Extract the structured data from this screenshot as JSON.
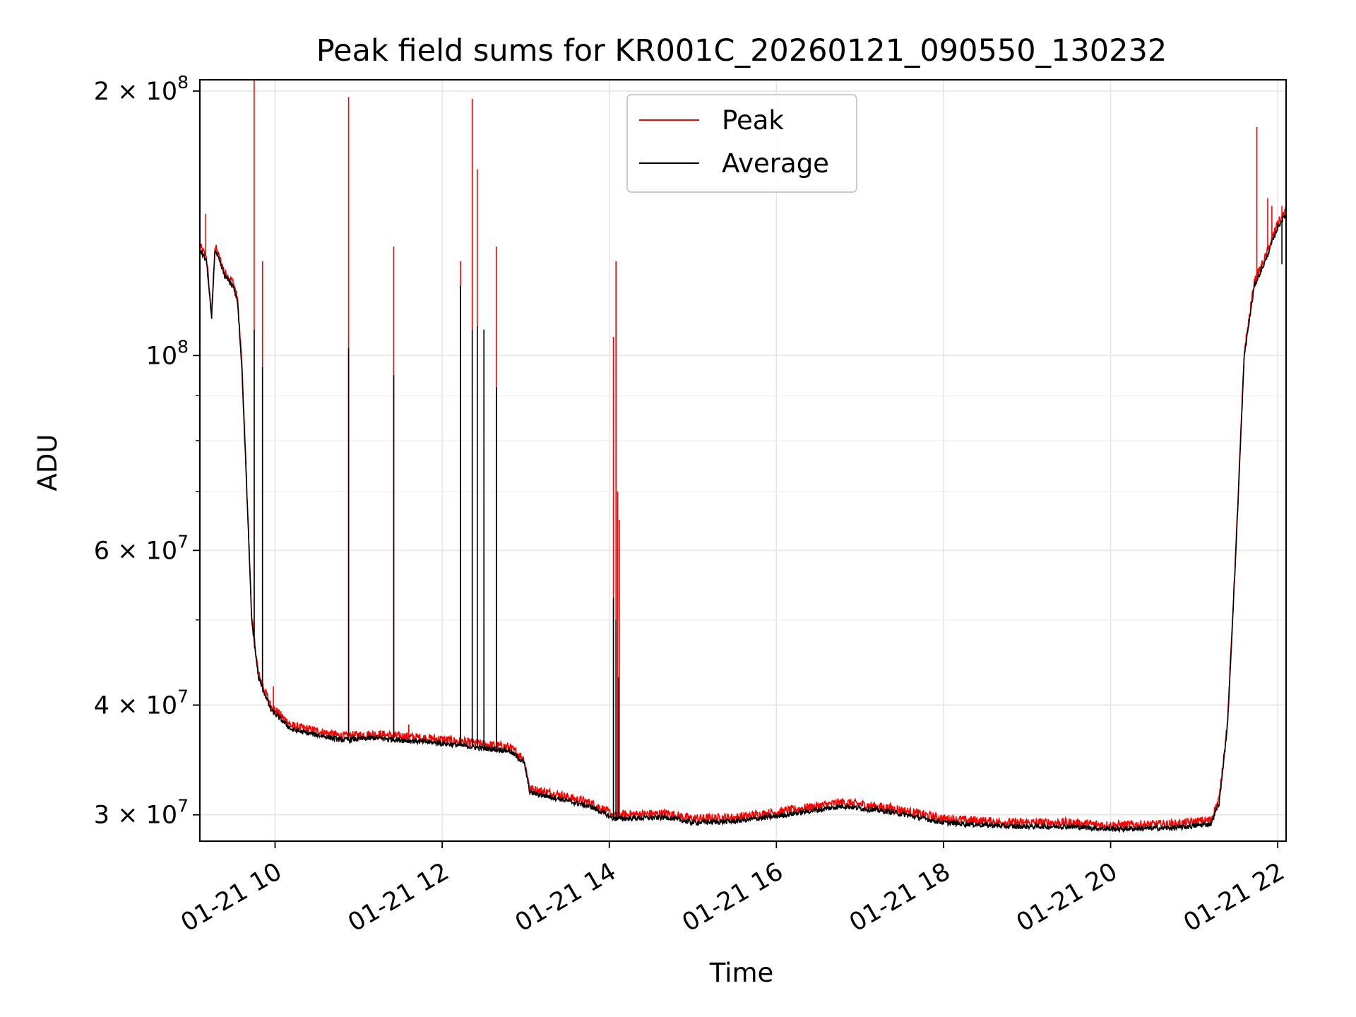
{
  "chart_data": {
    "type": "line",
    "title": "Peak field sums for KR001C_20260121_090550_130232",
    "xlabel": "Time",
    "ylabel": "ADU",
    "yscale": "log",
    "x_unit": "hours (day 2026-01-21)",
    "xlim": [
      9.1,
      22.1
    ],
    "ylim": [
      28000000,
      206000000
    ],
    "grid": true,
    "legend_position": "top-center",
    "x_ticks": [
      {
        "value": 10,
        "label": "01-21 10"
      },
      {
        "value": 12,
        "label": "01-21 12"
      },
      {
        "value": 14,
        "label": "01-21 14"
      },
      {
        "value": 16,
        "label": "01-21 16"
      },
      {
        "value": 18,
        "label": "01-21 18"
      },
      {
        "value": 20,
        "label": "01-21 20"
      },
      {
        "value": 22,
        "label": "01-21 22"
      }
    ],
    "y_ticks_major": [
      {
        "value": 30000000,
        "mantissa": "3",
        "exponent": "7"
      },
      {
        "value": 40000000,
        "mantissa": "4",
        "exponent": "7"
      },
      {
        "value": 60000000,
        "mantissa": "6",
        "exponent": "7"
      },
      {
        "value": 100000000,
        "mantissa": "",
        "exponent": "8"
      },
      {
        "value": 200000000,
        "mantissa": "2",
        "exponent": "8"
      }
    ],
    "y_ticks_minor": [
      50000000,
      70000000,
      80000000,
      90000000
    ],
    "series": [
      {
        "name": "Average",
        "color": "#000000",
        "noise_fraction": 0.007,
        "baseline": [
          [
            9.1,
            132000000
          ],
          [
            9.18,
            128000000
          ],
          [
            9.24,
            110000000
          ],
          [
            9.28,
            132000000
          ],
          [
            9.4,
            123000000
          ],
          [
            9.5,
            120000000
          ],
          [
            9.55,
            115000000
          ],
          [
            9.6,
            98000000
          ],
          [
            9.65,
            75000000
          ],
          [
            9.72,
            50000000
          ],
          [
            9.8,
            43000000
          ],
          [
            9.95,
            39500000
          ],
          [
            10.2,
            37500000
          ],
          [
            10.8,
            36500000
          ],
          [
            11.2,
            36700000
          ],
          [
            11.5,
            36500000
          ],
          [
            12.0,
            36200000
          ],
          [
            12.4,
            35800000
          ],
          [
            12.8,
            35500000
          ],
          [
            12.98,
            34400000
          ],
          [
            13.05,
            31800000
          ],
          [
            13.4,
            31300000
          ],
          [
            13.8,
            30600000
          ],
          [
            14.05,
            29700000
          ],
          [
            14.7,
            29800000
          ],
          [
            15.0,
            29400000
          ],
          [
            15.5,
            29500000
          ],
          [
            16.0,
            29900000
          ],
          [
            16.8,
            30700000
          ],
          [
            17.4,
            30200000
          ],
          [
            18.0,
            29400000
          ],
          [
            18.8,
            29100000
          ],
          [
            19.5,
            29100000
          ],
          [
            20.0,
            28900000
          ],
          [
            20.8,
            29000000
          ],
          [
            21.2,
            29300000
          ],
          [
            21.3,
            31000000
          ],
          [
            21.4,
            38000000
          ],
          [
            21.5,
            60000000
          ],
          [
            21.6,
            100000000
          ],
          [
            21.72,
            120000000
          ],
          [
            21.85,
            128000000
          ],
          [
            22.0,
            140000000
          ],
          [
            22.1,
            145000000
          ]
        ],
        "events": [
          [
            9.75,
            107000000
          ],
          [
            9.85,
            97000000
          ],
          [
            10.88,
            102000000
          ],
          [
            11.42,
            95000000
          ],
          [
            12.22,
            120000000
          ],
          [
            12.36,
            107000000
          ],
          [
            12.42,
            108000000
          ],
          [
            12.5,
            107000000
          ],
          [
            12.65,
            92000000
          ],
          [
            14.05,
            53000000
          ],
          [
            14.08,
            50000000
          ],
          [
            14.11,
            43000000
          ],
          [
            22.05,
            127000000
          ]
        ]
      },
      {
        "name": "Peak",
        "color": "#ff0000",
        "noise_fraction": 0.012,
        "offset_fraction": 0.01,
        "events": [
          [
            9.17,
            145000000
          ],
          [
            9.75,
            206000000
          ],
          [
            9.85,
            128000000
          ],
          [
            9.98,
            42000000
          ],
          [
            10.88,
            197000000
          ],
          [
            11.42,
            133000000
          ],
          [
            11.6,
            38000000
          ],
          [
            12.22,
            128000000
          ],
          [
            12.36,
            196000000
          ],
          [
            12.42,
            163000000
          ],
          [
            12.65,
            133000000
          ],
          [
            14.05,
            105000000
          ],
          [
            14.08,
            128000000
          ],
          [
            14.1,
            70000000
          ],
          [
            14.12,
            65000000
          ],
          [
            21.75,
            182000000
          ],
          [
            21.88,
            151000000
          ],
          [
            21.93,
            148000000
          ],
          [
            22.05,
            148000000
          ]
        ]
      }
    ]
  }
}
